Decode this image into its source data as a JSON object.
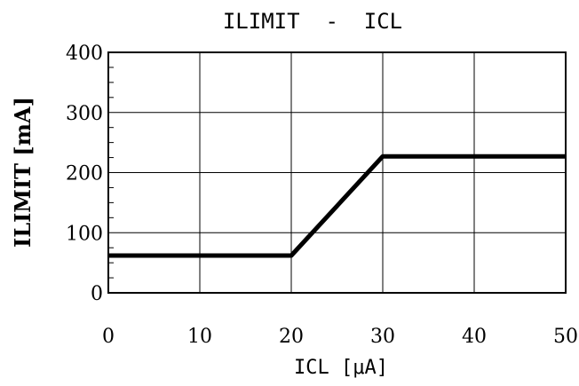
{
  "chart_data": {
    "type": "line",
    "title": "ILIMIT  -  ICL",
    "xlabel": "ICL [μA]",
    "ylabel": "ILIMIT [mA]",
    "xlim": [
      0,
      50
    ],
    "ylim": [
      0,
      400
    ],
    "xticks": [
      0,
      10,
      20,
      30,
      40,
      50
    ],
    "yticks": [
      0,
      100,
      200,
      300,
      400
    ],
    "grid": true,
    "legend": "none",
    "series": [
      {
        "x": [
          0,
          20,
          30,
          50
        ],
        "y": [
          62,
          62,
          227,
          227
        ],
        "color": "#000000"
      }
    ]
  }
}
